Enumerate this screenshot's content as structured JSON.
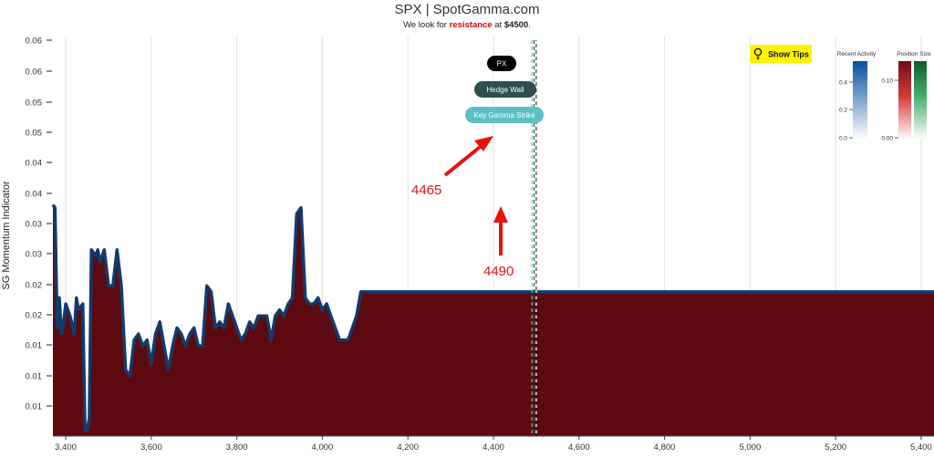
{
  "header": {
    "title": "SPX | SpotGamma.com",
    "subtitle_prefix": "We look for ",
    "subtitle_emphasis": "resistance",
    "subtitle_mid": " at ",
    "subtitle_level": "$4500",
    "subtitle_suffix": "."
  },
  "buttons": {
    "show_tips": "Show Tips"
  },
  "markers": {
    "px": "PX",
    "hedge_wall": "Hedge Wall",
    "key_gamma": "Key Gamma Strike"
  },
  "annotations": {
    "left": "4465",
    "right": "4490"
  },
  "legends": {
    "recent_activity": {
      "title": "Recent Activity",
      "ticks": [
        "0.4",
        "0.2",
        "0.0"
      ]
    },
    "position_size": {
      "title": "Position Size",
      "ticks": [
        "0.10",
        "0.00"
      ]
    }
  },
  "colors": {
    "fill": "#5c0a10",
    "line": "#123b6c",
    "resistance": "#e00000",
    "annotation": "#e8120c",
    "tips_bg": "#fff200",
    "hedge_wall": "#2f4f4f",
    "key_gamma": "#5bbfc3"
  },
  "chart_data": {
    "type": "area",
    "ylabel": "SG Momentum Indicator",
    "xlabel": "",
    "x_ticks": [
      "3,400",
      "3,600",
      "3,800",
      "4,000",
      "4,200",
      "4,400",
      "4,600",
      "4,800",
      "5,000",
      "5,200",
      "5,400"
    ],
    "y_ticks": [
      "0.01",
      "0.01",
      "0.01",
      "0.02",
      "0.02",
      "0.03",
      "0.03",
      "0.04",
      "0.04",
      "0.05",
      "0.05",
      "0.06",
      "0.06"
    ],
    "xlim": [
      3370,
      5430
    ],
    "ylim": [
      0,
      0.0665
    ],
    "grid": "vertical",
    "vertical_markers": {
      "px": 4500,
      "hedge_wall": 4495,
      "key_gamma": 4490
    },
    "x": [
      3370,
      3375,
      3380,
      3385,
      3390,
      3395,
      3400,
      3410,
      3420,
      3425,
      3430,
      3440,
      3445,
      3450,
      3455,
      3460,
      3470,
      3475,
      3480,
      3490,
      3500,
      3510,
      3520,
      3530,
      3540,
      3550,
      3555,
      3560,
      3570,
      3580,
      3590,
      3600,
      3610,
      3620,
      3630,
      3640,
      3650,
      3660,
      3670,
      3680,
      3690,
      3700,
      3710,
      3720,
      3730,
      3740,
      3750,
      3760,
      3770,
      3780,
      3790,
      3800,
      3810,
      3820,
      3830,
      3840,
      3850,
      3860,
      3870,
      3880,
      3890,
      3900,
      3910,
      3920,
      3930,
      3940,
      3950,
      3960,
      3970,
      3980,
      3990,
      4000,
      4010,
      4020,
      4030,
      4040,
      4050,
      4060,
      4070,
      4080,
      4090,
      4100,
      4110,
      4120,
      4130,
      4140,
      4150,
      4160,
      4170,
      4180,
      4190,
      4200,
      4210,
      4220,
      4230,
      4240,
      4250,
      4260,
      4270,
      4280,
      4290,
      4300,
      4310,
      4320,
      4330,
      4340,
      4350,
      4360,
      4370,
      4380,
      4390,
      4400,
      4410,
      4420,
      4430,
      4440,
      4450,
      4460,
      4465,
      4470,
      4480,
      4490,
      4495,
      4500,
      4510,
      4520,
      4530,
      4540,
      4550,
      4560,
      4570,
      4580,
      4590,
      4600,
      4610,
      4620,
      4640,
      4660,
      4680,
      4700,
      4750,
      4800,
      4850,
      4900,
      4950,
      5000,
      5100,
      5200,
      5300,
      5400,
      5430
    ],
    "values": [
      0.0385,
      0.038,
      0.018,
      0.023,
      0.017,
      0.019,
      0.022,
      0.02,
      0.017,
      0.023,
      0.021,
      0.022,
      0.001,
      0.001,
      0.003,
      0.031,
      0.03,
      0.031,
      0.029,
      0.031,
      0.025,
      0.025,
      0.031,
      0.025,
      0.011,
      0.01,
      0.013,
      0.016,
      0.017,
      0.015,
      0.016,
      0.012,
      0.017,
      0.019,
      0.015,
      0.011,
      0.015,
      0.018,
      0.017,
      0.015,
      0.017,
      0.018,
      0.015,
      0.015,
      0.025,
      0.024,
      0.018,
      0.019,
      0.018,
      0.022,
      0.02,
      0.018,
      0.016,
      0.017,
      0.019,
      0.018,
      0.02,
      0.02,
      0.02,
      0.016,
      0.02,
      0.021,
      0.02,
      0.022,
      0.023,
      0.037,
      0.038,
      0.023,
      0.022,
      0.022,
      0.023,
      0.021,
      0.022,
      0.02,
      0.018,
      0.016,
      0.016,
      0.016,
      0.018,
      0.02,
      0.024,
      0.024,
      0.024,
      0.024,
      0.024,
      0.024,
      0.024,
      0.024,
      0.024,
      0.024,
      0.024,
      0.024,
      0.024,
      0.024,
      0.024,
      0.024,
      0.024,
      0.024,
      0.024,
      0.024,
      0.024,
      0.024,
      0.024,
      0.024,
      0.024,
      0.024,
      0.024,
      0.024,
      0.024,
      0.024,
      0.024,
      0.024,
      0.024,
      0.024,
      0.024,
      0.024,
      0.024,
      0.024,
      0.024,
      0.024,
      0.024,
      0.024,
      0.024,
      0.024,
      0.024,
      0.024,
      0.024,
      0.024,
      0.024,
      0.024,
      0.024,
      0.024,
      0.024,
      0.024,
      0.024,
      0.024,
      0.024,
      0.024,
      0.024,
      0.024,
      0.024,
      0.024,
      0.024,
      0.024,
      0.024,
      0.024,
      0.024,
      0.024,
      0.024,
      0.024,
      0.024
    ]
  }
}
